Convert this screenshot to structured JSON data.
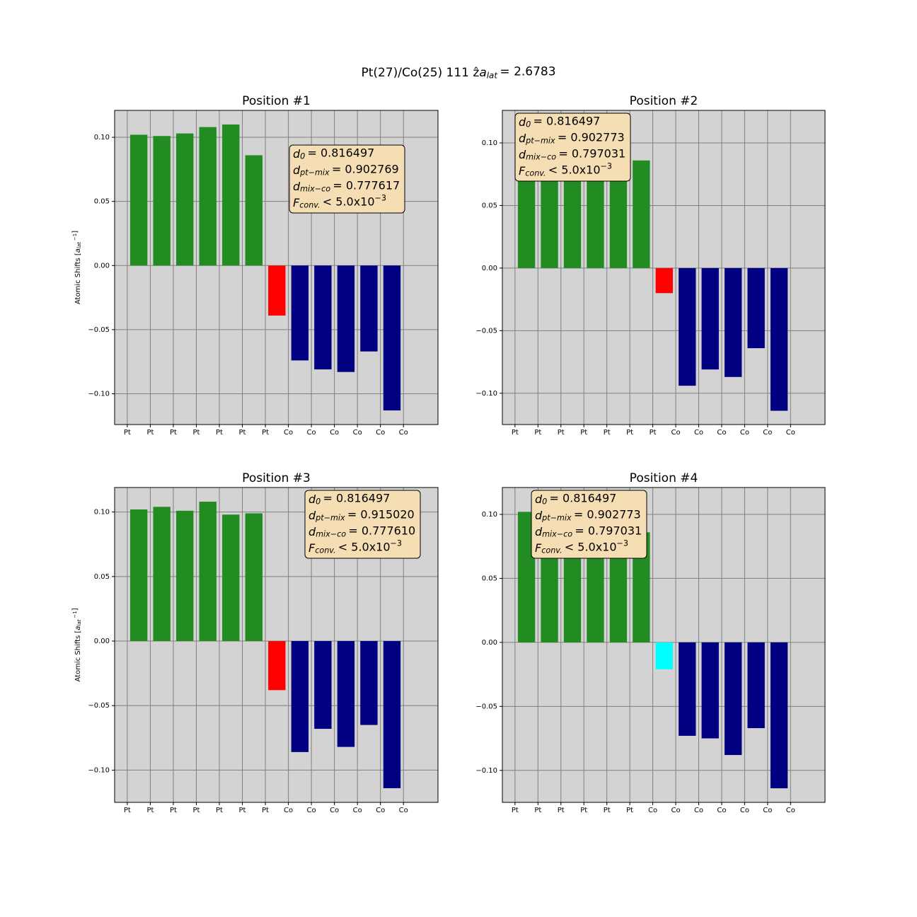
{
  "chart_data": [
    {
      "type": "bar",
      "title": "Position #1",
      "suptitle": {
        "text": "Pt(27)/Co(25) 111 ẑ",
        "var": "a",
        "sub": "lat",
        "rel": "= 2.6783"
      },
      "ylabel": {
        "text": "Atomic Shifts [",
        "var": "a",
        "sub": "lat",
        "sup": "−1",
        "end": "]"
      },
      "x": [
        0.5,
        1.5,
        2.5,
        3.5,
        4.5,
        5.5,
        6.5,
        7.5,
        8.5,
        9.5,
        10.5,
        11.5
      ],
      "values": [
        0.102,
        0.101,
        0.103,
        0.108,
        0.11,
        0.086,
        -0.039,
        -0.074,
        -0.081,
        -0.083,
        -0.067,
        -0.113
      ],
      "colors": [
        "#228b22",
        "#228b22",
        "#228b22",
        "#228b22",
        "#228b22",
        "#228b22",
        "#ff0000",
        "#000080",
        "#000080",
        "#000080",
        "#000080",
        "#000080"
      ],
      "xlim": [
        -0.55,
        13.5
      ],
      "xticks": [
        {
          "value": 0,
          "label": "Pt"
        },
        {
          "value": 1,
          "label": "Pt"
        },
        {
          "value": 2,
          "label": "Pt"
        },
        {
          "value": 3,
          "label": "Pt"
        },
        {
          "value": 4,
          "label": "Pt"
        },
        {
          "value": 5,
          "label": "Pt"
        },
        {
          "value": 6,
          "label": "Pt"
        },
        {
          "value": 7,
          "label": "Co"
        },
        {
          "value": 8,
          "label": "Co"
        },
        {
          "value": 9,
          "label": "Co"
        },
        {
          "value": 10,
          "label": "Co"
        },
        {
          "value": 11,
          "label": "Co"
        },
        {
          "value": 12,
          "label": "Co"
        }
      ],
      "ylim": [
        -0.124,
        0.121
      ],
      "yticks": [
        {
          "value": -0.1,
          "label": "−0.10"
        },
        {
          "value": -0.05,
          "label": "−0.05"
        },
        {
          "value": 0,
          "label": "0.00"
        },
        {
          "value": 0.05,
          "label": "0.05"
        },
        {
          "value": 0.1,
          "label": "0.10"
        }
      ],
      "grid": true,
      "annotation": [
        {
          "var": "d",
          "sub": "0",
          "rel": "= 0.816497"
        },
        {
          "var": "d",
          "sub": "pt−mix",
          "rel": "= 0.902769"
        },
        {
          "var": "d",
          "sub": "mix−co",
          "rel": "= 0.777617"
        },
        {
          "var": "F",
          "sub": "conv.",
          "rel": "< 5.0x10",
          "sup": "−3"
        }
      ]
    },
    {
      "type": "bar",
      "title": "Position #2",
      "x": [
        0.5,
        1.5,
        2.5,
        3.5,
        4.5,
        5.5,
        6.5,
        7.5,
        8.5,
        9.5,
        10.5,
        11.5
      ],
      "values": [
        0.102,
        0.101,
        0.103,
        0.104,
        0.1,
        0.086,
        -0.02,
        -0.094,
        -0.081,
        -0.087,
        -0.064,
        -0.114
      ],
      "colors": [
        "#228b22",
        "#228b22",
        "#228b22",
        "#228b22",
        "#228b22",
        "#228b22",
        "#ff0000",
        "#000080",
        "#000080",
        "#000080",
        "#000080",
        "#000080"
      ],
      "xlim": [
        -0.55,
        13.5
      ],
      "xticks": [
        {
          "value": 0,
          "label": "Pt"
        },
        {
          "value": 1,
          "label": "Pt"
        },
        {
          "value": 2,
          "label": "Pt"
        },
        {
          "value": 3,
          "label": "Pt"
        },
        {
          "value": 4,
          "label": "Pt"
        },
        {
          "value": 5,
          "label": "Pt"
        },
        {
          "value": 6,
          "label": "Pt"
        },
        {
          "value": 7,
          "label": "Co"
        },
        {
          "value": 8,
          "label": "Co"
        },
        {
          "value": 9,
          "label": "Co"
        },
        {
          "value": 10,
          "label": "Co"
        },
        {
          "value": 11,
          "label": "Co"
        },
        {
          "value": 12,
          "label": "Co"
        }
      ],
      "ylim": [
        -0.125,
        0.126
      ],
      "yticks": [
        {
          "value": -0.1,
          "label": "−0.10"
        },
        {
          "value": -0.05,
          "label": "−0.05"
        },
        {
          "value": 0,
          "label": "0.00"
        },
        {
          "value": 0.05,
          "label": "0.05"
        },
        {
          "value": 0.1,
          "label": "0.10"
        }
      ],
      "grid": true,
      "annotation": [
        {
          "var": "d",
          "sub": "0",
          "rel": "= 0.816497"
        },
        {
          "var": "d",
          "sub": "pt−mix",
          "rel": "= 0.902773"
        },
        {
          "var": "d",
          "sub": "mix−co",
          "rel": "= 0.797031"
        },
        {
          "var": "F",
          "sub": "conv.",
          "rel": "< 5.0x10",
          "sup": "−3"
        }
      ]
    },
    {
      "type": "bar",
      "title": "Position #3",
      "ylabel": {
        "text": "Atomic Shifts [",
        "var": "a",
        "sub": "lat",
        "sup": "−1",
        "end": "]"
      },
      "x": [
        0.5,
        1.5,
        2.5,
        3.5,
        4.5,
        5.5,
        6.5,
        7.5,
        8.5,
        9.5,
        10.5,
        11.5
      ],
      "values": [
        0.102,
        0.104,
        0.101,
        0.108,
        0.098,
        0.099,
        -0.038,
        -0.086,
        -0.068,
        -0.082,
        -0.065,
        -0.114
      ],
      "colors": [
        "#228b22",
        "#228b22",
        "#228b22",
        "#228b22",
        "#228b22",
        "#228b22",
        "#ff0000",
        "#000080",
        "#000080",
        "#000080",
        "#000080",
        "#000080"
      ],
      "xlim": [
        -0.55,
        13.5
      ],
      "xticks": [
        {
          "value": 0,
          "label": "Pt"
        },
        {
          "value": 1,
          "label": "Pt"
        },
        {
          "value": 2,
          "label": "Pt"
        },
        {
          "value": 3,
          "label": "Pt"
        },
        {
          "value": 4,
          "label": "Pt"
        },
        {
          "value": 5,
          "label": "Pt"
        },
        {
          "value": 6,
          "label": "Pt"
        },
        {
          "value": 7,
          "label": "Co"
        },
        {
          "value": 8,
          "label": "Co"
        },
        {
          "value": 9,
          "label": "Co"
        },
        {
          "value": 10,
          "label": "Co"
        },
        {
          "value": 11,
          "label": "Co"
        },
        {
          "value": 12,
          "label": "Co"
        }
      ],
      "ylim": [
        -0.125,
        0.119
      ],
      "yticks": [
        {
          "value": -0.1,
          "label": "−0.10"
        },
        {
          "value": -0.05,
          "label": "−0.05"
        },
        {
          "value": 0,
          "label": "0.00"
        },
        {
          "value": 0.05,
          "label": "0.05"
        },
        {
          "value": 0.1,
          "label": "0.10"
        }
      ],
      "grid": true,
      "annotation": [
        {
          "var": "d",
          "sub": "0",
          "rel": "= 0.816497"
        },
        {
          "var": "d",
          "sub": "pt−mix",
          "rel": "= 0.915020"
        },
        {
          "var": "d",
          "sub": "mix−co",
          "rel": "= 0.777610"
        },
        {
          "var": "F",
          "sub": "conv.",
          "rel": "< 5.0x10",
          "sup": "−3"
        }
      ]
    },
    {
      "type": "bar",
      "title": "Position #4",
      "x": [
        0.5,
        1.5,
        2.5,
        3.5,
        4.5,
        5.5,
        6.5,
        7.5,
        8.5,
        9.5,
        10.5,
        11.5
      ],
      "values": [
        0.102,
        0.101,
        0.103,
        0.104,
        0.1,
        0.086,
        -0.021,
        -0.073,
        -0.075,
        -0.088,
        -0.067,
        -0.114
      ],
      "colors": [
        "#228b22",
        "#228b22",
        "#228b22",
        "#228b22",
        "#228b22",
        "#228b22",
        "#00ffff",
        "#000080",
        "#000080",
        "#000080",
        "#000080",
        "#000080"
      ],
      "xlim": [
        -0.55,
        13.5
      ],
      "xticks": [
        {
          "value": 0,
          "label": "Pt"
        },
        {
          "value": 1,
          "label": "Pt"
        },
        {
          "value": 2,
          "label": "Pt"
        },
        {
          "value": 3,
          "label": "Pt"
        },
        {
          "value": 4,
          "label": "Pt"
        },
        {
          "value": 5,
          "label": "Pt"
        },
        {
          "value": 6,
          "label": "Co"
        },
        {
          "value": 7,
          "label": "Co"
        },
        {
          "value": 8,
          "label": "Co"
        },
        {
          "value": 9,
          "label": "Co"
        },
        {
          "value": 10,
          "label": "Co"
        },
        {
          "value": 11,
          "label": "Co"
        },
        {
          "value": 12,
          "label": "Co"
        }
      ],
      "ylim": [
        -0.125,
        0.121
      ],
      "yticks": [
        {
          "value": -0.1,
          "label": "−0.10"
        },
        {
          "value": -0.05,
          "label": "−0.05"
        },
        {
          "value": 0,
          "label": "0.00"
        },
        {
          "value": 0.05,
          "label": "0.05"
        },
        {
          "value": 0.1,
          "label": "0.10"
        }
      ],
      "grid": true,
      "annotation": [
        {
          "var": "d",
          "sub": "0",
          "rel": "= 0.816497"
        },
        {
          "var": "d",
          "sub": "pt−mix",
          "rel": "= 0.902773"
        },
        {
          "var": "d",
          "sub": "mix−co",
          "rel": "= 0.797031"
        },
        {
          "var": "F",
          "sub": "conv.",
          "rel": "< 5.0x10",
          "sup": "−3"
        }
      ]
    }
  ]
}
